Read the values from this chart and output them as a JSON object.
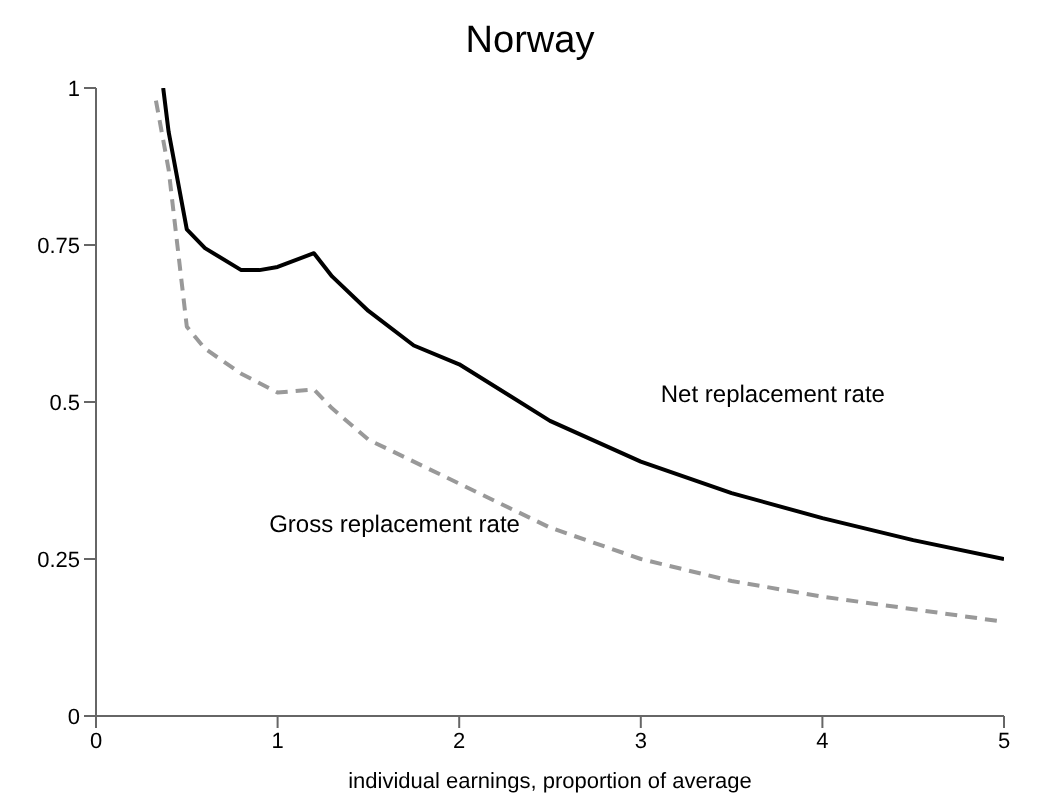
{
  "chart_data": {
    "type": "line",
    "title": "Norway",
    "xlabel": "individual earnings, proportion of average",
    "xlim": [
      0,
      5
    ],
    "xticks": [
      0,
      1,
      2,
      3,
      4,
      5
    ],
    "ylim": [
      0,
      1
    ],
    "yticks": [
      0,
      {
        "value": 0.25,
        "label": "0.25"
      },
      {
        "value": 0.5,
        "label": "0.5"
      },
      {
        "value": 0.75,
        "label": "0.75"
      },
      1
    ],
    "grid": false,
    "legend": false,
    "marker": "none",
    "series": [
      {
        "name": "Net replacement rate",
        "color": "#000000",
        "line_style": "solid",
        "x": [
          0.37,
          0.4,
          0.5,
          0.6,
          0.8,
          0.9,
          1.0,
          1.2,
          1.3,
          1.5,
          1.75,
          2.0,
          2.5,
          3.0,
          3.5,
          4.0,
          4.5,
          5.0
        ],
        "values": [
          1.0,
          0.93,
          0.775,
          0.745,
          0.71,
          0.71,
          0.715,
          0.737,
          0.7,
          0.645,
          0.59,
          0.56,
          0.47,
          0.405,
          0.355,
          0.315,
          0.28,
          0.25
        ]
      },
      {
        "name": "Gross replacement rate",
        "color": "#999999",
        "line_style": "dashed",
        "x": [
          0.33,
          0.4,
          0.5,
          0.6,
          0.8,
          1.0,
          1.2,
          1.3,
          1.5,
          2.0,
          2.5,
          3.0,
          3.5,
          4.0,
          4.5,
          5.0
        ],
        "values": [
          0.98,
          0.87,
          0.62,
          0.585,
          0.545,
          0.515,
          0.52,
          0.49,
          0.44,
          0.37,
          0.3,
          0.25,
          0.215,
          0.19,
          0.17,
          0.15
        ]
      }
    ]
  }
}
